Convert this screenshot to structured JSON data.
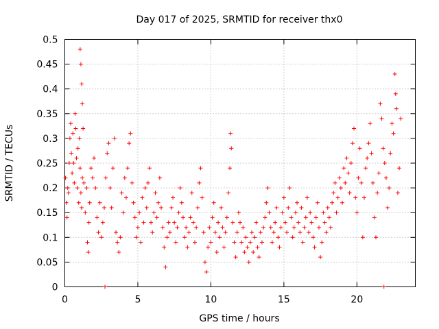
{
  "chart_data": {
    "type": "scatter",
    "title": "Day 017 of 2025, SRMTID for receiver thx0",
    "xlabel": "GPS time / hours",
    "ylabel": "SRMTID / TECUs",
    "xlim": [
      0,
      24
    ],
    "ylim": [
      0,
      0.5
    ],
    "xticks": [
      0,
      5,
      10,
      15,
      20
    ],
    "yticks": [
      0,
      0.05,
      0.1,
      0.15,
      0.2,
      0.25,
      0.3,
      0.35,
      0.4,
      0.45,
      0.5
    ],
    "xtick_labels": [
      "0",
      "5",
      "10",
      "15",
      "20"
    ],
    "ytick_labels": [
      "0",
      "0.05",
      "0.1",
      "0.15",
      "0.2",
      "0.25",
      "0.3",
      "0.35",
      "0.4",
      "0.45",
      "0.5"
    ],
    "grid": true,
    "marker": "+",
    "series": [
      {
        "name": "SRMTID",
        "color": "#ff0000",
        "points": [
          [
            0.05,
            0.22
          ],
          [
            0.1,
            0.17
          ],
          [
            0.15,
            0.14
          ],
          [
            0.2,
            0.2
          ],
          [
            0.25,
            0.19
          ],
          [
            0.3,
            0.25
          ],
          [
            0.35,
            0.3
          ],
          [
            0.4,
            0.33
          ],
          [
            0.45,
            0.27
          ],
          [
            0.5,
            0.23
          ],
          [
            0.55,
            0.31
          ],
          [
            0.6,
            0.25
          ],
          [
            0.65,
            0.21
          ],
          [
            0.7,
            0.35
          ],
          [
            0.75,
            0.32
          ],
          [
            0.8,
            0.26
          ],
          [
            0.85,
            0.2
          ],
          [
            0.9,
            0.28
          ],
          [
            0.95,
            0.17
          ],
          [
            1.0,
            0.3
          ],
          [
            1.05,
            0.24
          ],
          [
            1.1,
            0.19
          ],
          [
            1.15,
            0.16
          ],
          [
            1.2,
            0.22
          ],
          [
            1.05,
            0.48
          ],
          [
            1.1,
            0.45
          ],
          [
            1.15,
            0.41
          ],
          [
            1.2,
            0.37
          ],
          [
            1.25,
            0.32
          ],
          [
            1.3,
            0.21
          ],
          [
            1.4,
            0.15
          ],
          [
            1.5,
            0.2
          ],
          [
            1.55,
            0.09
          ],
          [
            1.6,
            0.07
          ],
          [
            1.65,
            0.13
          ],
          [
            1.7,
            0.17
          ],
          [
            1.8,
            0.24
          ],
          [
            1.9,
            0.22
          ],
          [
            2.0,
            0.26
          ],
          [
            2.1,
            0.2
          ],
          [
            2.2,
            0.14
          ],
          [
            2.3,
            0.11
          ],
          [
            2.4,
            0.17
          ],
          [
            2.5,
            0.1
          ],
          [
            2.6,
            0.13
          ],
          [
            2.7,
            0.16
          ],
          [
            2.8,
            0.22
          ],
          [
            2.9,
            0.27
          ],
          [
            3.0,
            0.29
          ],
          [
            3.1,
            0.2
          ],
          [
            3.2,
            0.16
          ],
          [
            3.3,
            0.24
          ],
          [
            3.4,
            0.3
          ],
          [
            3.5,
            0.11
          ],
          [
            3.6,
            0.09
          ],
          [
            3.7,
            0.07
          ],
          [
            3.8,
            0.1
          ],
          [
            3.9,
            0.19
          ],
          [
            4.0,
            0.15
          ],
          [
            4.1,
            0.22
          ],
          [
            4.2,
            0.18
          ],
          [
            4.3,
            0.24
          ],
          [
            4.4,
            0.29
          ],
          [
            4.5,
            0.31
          ],
          [
            4.6,
            0.21
          ],
          [
            4.7,
            0.17
          ],
          [
            4.8,
            0.14
          ],
          [
            4.9,
            0.1
          ],
          [
            5.0,
            0.12
          ],
          [
            5.1,
            0.15
          ],
          [
            5.2,
            0.09
          ],
          [
            5.3,
            0.18
          ],
          [
            5.4,
            0.13
          ],
          [
            5.5,
            0.2
          ],
          [
            5.6,
            0.16
          ],
          [
            5.7,
            0.21
          ],
          [
            5.8,
            0.24
          ],
          [
            5.9,
            0.13
          ],
          [
            6.0,
            0.11
          ],
          [
            6.1,
            0.15
          ],
          [
            6.2,
            0.19
          ],
          [
            6.3,
            0.14
          ],
          [
            6.4,
            0.17
          ],
          [
            6.5,
            0.22
          ],
          [
            6.6,
            0.16
          ],
          [
            6.7,
            0.12
          ],
          [
            6.8,
            0.08
          ],
          [
            6.9,
            0.04
          ],
          [
            7.0,
            0.1
          ],
          [
            7.1,
            0.13
          ],
          [
            7.2,
            0.11
          ],
          [
            7.3,
            0.16
          ],
          [
            7.4,
            0.18
          ],
          [
            7.5,
            0.13
          ],
          [
            7.6,
            0.09
          ],
          [
            7.7,
            0.12
          ],
          [
            7.8,
            0.15
          ],
          [
            7.9,
            0.2
          ],
          [
            8.0,
            0.17
          ],
          [
            8.1,
            0.14
          ],
          [
            8.2,
            0.1
          ],
          [
            8.3,
            0.12
          ],
          [
            8.4,
            0.08
          ],
          [
            8.5,
            0.11
          ],
          [
            8.6,
            0.14
          ],
          [
            8.7,
            0.19
          ],
          [
            8.8,
            0.13
          ],
          [
            8.9,
            0.09
          ],
          [
            9.0,
            0.12
          ],
          [
            9.1,
            0.16
          ],
          [
            9.2,
            0.21
          ],
          [
            9.3,
            0.24
          ],
          [
            9.4,
            0.18
          ],
          [
            9.5,
            0.11
          ],
          [
            9.6,
            0.05
          ],
          [
            9.7,
            0.03
          ],
          [
            9.8,
            0.08
          ],
          [
            9.9,
            0.12
          ],
          [
            10.0,
            0.09
          ],
          [
            10.1,
            0.14
          ],
          [
            10.2,
            0.17
          ],
          [
            10.3,
            0.11
          ],
          [
            10.4,
            0.07
          ],
          [
            10.5,
            0.13
          ],
          [
            10.6,
            0.1
          ],
          [
            10.7,
            0.16
          ],
          [
            10.8,
            0.12
          ],
          [
            10.9,
            0.08
          ],
          [
            11.0,
            0.11
          ],
          [
            11.1,
            0.14
          ],
          [
            11.2,
            0.19
          ],
          [
            11.3,
            0.24
          ],
          [
            11.35,
            0.31
          ],
          [
            11.4,
            0.28
          ],
          [
            11.5,
            0.13
          ],
          [
            11.6,
            0.09
          ],
          [
            11.7,
            0.06
          ],
          [
            11.8,
            0.11
          ],
          [
            11.9,
            0.15
          ],
          [
            12.0,
            0.13
          ],
          [
            12.1,
            0.09
          ],
          [
            12.2,
            0.12
          ],
          [
            12.3,
            0.07
          ],
          [
            12.4,
            0.1
          ],
          [
            12.5,
            0.08
          ],
          [
            12.6,
            0.05
          ],
          [
            12.7,
            0.09
          ],
          [
            12.8,
            0.11
          ],
          [
            12.9,
            0.07
          ],
          [
            13.0,
            0.1
          ],
          [
            13.1,
            0.13
          ],
          [
            13.2,
            0.08
          ],
          [
            13.3,
            0.06
          ],
          [
            13.4,
            0.11
          ],
          [
            13.5,
            0.09
          ],
          [
            13.6,
            0.12
          ],
          [
            13.7,
            0.14
          ],
          [
            13.8,
            0.17
          ],
          [
            13.9,
            0.2
          ],
          [
            14.0,
            0.15
          ],
          [
            14.1,
            0.12
          ],
          [
            14.2,
            0.09
          ],
          [
            14.3,
            0.11
          ],
          [
            14.4,
            0.13
          ],
          [
            14.5,
            0.16
          ],
          [
            14.6,
            0.1
          ],
          [
            14.7,
            0.08
          ],
          [
            14.8,
            0.12
          ],
          [
            14.9,
            0.15
          ],
          [
            15.0,
            0.18
          ],
          [
            15.1,
            0.13
          ],
          [
            15.2,
            0.11
          ],
          [
            15.3,
            0.16
          ],
          [
            15.4,
            0.2
          ],
          [
            15.5,
            0.14
          ],
          [
            15.6,
            0.1
          ],
          [
            15.7,
            0.12
          ],
          [
            15.8,
            0.15
          ],
          [
            15.9,
            0.17
          ],
          [
            16.0,
            0.13
          ],
          [
            16.1,
            0.11
          ],
          [
            16.2,
            0.16
          ],
          [
            16.3,
            0.09
          ],
          [
            16.4,
            0.12
          ],
          [
            16.5,
            0.14
          ],
          [
            16.6,
            0.18
          ],
          [
            16.7,
            0.11
          ],
          [
            16.8,
            0.15
          ],
          [
            16.9,
            0.13
          ],
          [
            17.0,
            0.1
          ],
          [
            17.1,
            0.08
          ],
          [
            17.2,
            0.14
          ],
          [
            17.3,
            0.17
          ],
          [
            17.4,
            0.12
          ],
          [
            17.5,
            0.06
          ],
          [
            17.6,
            0.09
          ],
          [
            17.7,
            0.15
          ],
          [
            17.8,
            0.13
          ],
          [
            17.9,
            0.11
          ],
          [
            18.0,
            0.16
          ],
          [
            18.1,
            0.14
          ],
          [
            18.2,
            0.12
          ],
          [
            18.3,
            0.17
          ],
          [
            18.4,
            0.19
          ],
          [
            18.5,
            0.21
          ],
          [
            18.6,
            0.15
          ],
          [
            18.7,
            0.18
          ],
          [
            18.8,
            0.22
          ],
          [
            18.9,
            0.2
          ],
          [
            19.0,
            0.17
          ],
          [
            19.1,
            0.24
          ],
          [
            19.2,
            0.21
          ],
          [
            19.3,
            0.26
          ],
          [
            19.4,
            0.23
          ],
          [
            19.5,
            0.19
          ],
          [
            19.6,
            0.25
          ],
          [
            19.7,
            0.29
          ],
          [
            19.8,
            0.32
          ],
          [
            19.9,
            0.18
          ],
          [
            20.0,
            0.15
          ],
          [
            20.1,
            0.22
          ],
          [
            20.2,
            0.28
          ],
          [
            20.3,
            0.21
          ],
          [
            20.4,
            0.1
          ],
          [
            20.5,
            0.18
          ],
          [
            20.6,
            0.24
          ],
          [
            20.7,
            0.26
          ],
          [
            20.8,
            0.29
          ],
          [
            20.9,
            0.33
          ],
          [
            21.0,
            0.27
          ],
          [
            21.1,
            0.21
          ],
          [
            21.2,
            0.14
          ],
          [
            21.3,
            0.1
          ],
          [
            21.4,
            0.19
          ],
          [
            21.5,
            0.23
          ],
          [
            21.6,
            0.37
          ],
          [
            21.7,
            0.34
          ],
          [
            21.8,
            0.28
          ],
          [
            21.9,
            0.25
          ],
          [
            22.0,
            0.22
          ],
          [
            22.1,
            0.16
          ],
          [
            22.2,
            0.2
          ],
          [
            22.3,
            0.27
          ],
          [
            22.4,
            0.33
          ],
          [
            22.5,
            0.31
          ],
          [
            22.6,
            0.43
          ],
          [
            22.65,
            0.39
          ],
          [
            22.7,
            0.36
          ],
          [
            22.8,
            0.19
          ],
          [
            22.9,
            0.24
          ],
          [
            23.0,
            0.34
          ]
        ]
      },
      {
        "name": "SRMTID (zero markers)",
        "color": "#ff0000",
        "points": [
          [
            2.75,
            0.0
          ],
          [
            21.85,
            0.0
          ]
        ]
      }
    ]
  }
}
